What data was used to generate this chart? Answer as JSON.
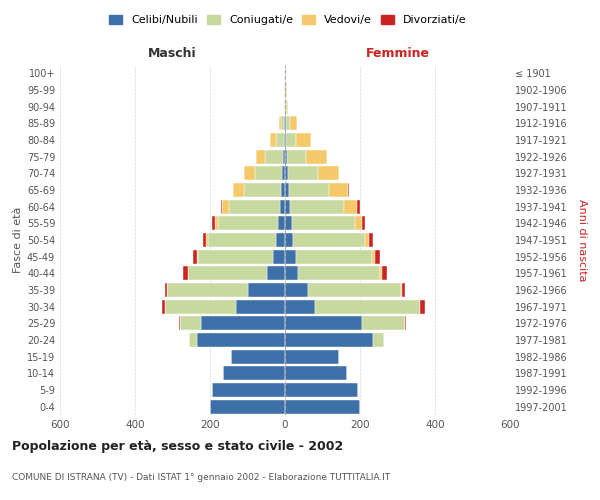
{
  "age_groups": [
    "0-4",
    "5-9",
    "10-14",
    "15-19",
    "20-24",
    "25-29",
    "30-34",
    "35-39",
    "40-44",
    "45-49",
    "50-54",
    "55-59",
    "60-64",
    "65-69",
    "70-74",
    "75-79",
    "80-84",
    "85-89",
    "90-94",
    "95-99",
    "100+"
  ],
  "birth_years": [
    "1997-2001",
    "1992-1996",
    "1987-1991",
    "1982-1986",
    "1977-1981",
    "1972-1976",
    "1967-1971",
    "1962-1966",
    "1957-1961",
    "1952-1956",
    "1947-1951",
    "1942-1946",
    "1937-1941",
    "1932-1936",
    "1927-1931",
    "1922-1926",
    "1917-1921",
    "1912-1916",
    "1907-1911",
    "1902-1906",
    "≤ 1901"
  ],
  "male_celibe": [
    200,
    195,
    165,
    145,
    235,
    225,
    130,
    100,
    48,
    32,
    25,
    18,
    14,
    10,
    8,
    5,
    3,
    2,
    1,
    1,
    1
  ],
  "male_coniugato": [
    0,
    0,
    0,
    0,
    20,
    55,
    190,
    215,
    210,
    200,
    180,
    160,
    135,
    100,
    72,
    48,
    22,
    8,
    2,
    1,
    0
  ],
  "male_vedovo": [
    0,
    0,
    0,
    0,
    0,
    1,
    0,
    1,
    2,
    3,
    5,
    8,
    18,
    28,
    30,
    25,
    15,
    5,
    1,
    0,
    0
  ],
  "male_divorziato": [
    0,
    0,
    0,
    0,
    0,
    2,
    8,
    5,
    12,
    10,
    8,
    8,
    5,
    0,
    0,
    0,
    0,
    0,
    0,
    0,
    0
  ],
  "female_celibe": [
    200,
    195,
    165,
    145,
    235,
    205,
    80,
    60,
    35,
    28,
    22,
    18,
    14,
    10,
    7,
    5,
    3,
    2,
    1,
    1,
    1
  ],
  "female_coniugato": [
    0,
    0,
    0,
    0,
    30,
    115,
    280,
    250,
    218,
    205,
    190,
    168,
    142,
    108,
    82,
    52,
    26,
    10,
    3,
    1,
    0
  ],
  "female_vedovo": [
    0,
    0,
    0,
    0,
    0,
    1,
    1,
    3,
    5,
    8,
    12,
    20,
    35,
    50,
    55,
    55,
    40,
    20,
    5,
    2,
    1
  ],
  "female_divorziato": [
    0,
    0,
    0,
    0,
    0,
    2,
    12,
    8,
    14,
    12,
    10,
    8,
    8,
    2,
    0,
    0,
    0,
    0,
    0,
    0,
    0
  ],
  "color_celibe": "#3d6fa8",
  "color_coniugato": "#c8d9a0",
  "color_vedovo": "#f5c96a",
  "color_divorziato": "#cc2222",
  "title": "Popolazione per età, sesso e stato civile - 2002",
  "subtitle": "COMUNE DI ISTRANA (TV) - Dati ISTAT 1° gennaio 2002 - Elaborazione TUTTITALIA.IT",
  "label_maschi": "Maschi",
  "label_femmine": "Femmine",
  "ylabel_left": "Fasce di età",
  "ylabel_right": "Anni di nascita",
  "xlim": 600,
  "xticks": [
    -600,
    -400,
    -200,
    0,
    200,
    400,
    600
  ],
  "xtick_labels": [
    "600",
    "400",
    "200",
    "0",
    "200",
    "400",
    "600"
  ],
  "background_color": "#ffffff",
  "legend_labels": [
    "Celibi/Nubili",
    "Coniugati/e",
    "Vedovi/e",
    "Divorziati/e"
  ]
}
